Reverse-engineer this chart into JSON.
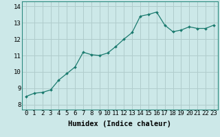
{
  "x": [
    0,
    1,
    2,
    3,
    4,
    5,
    6,
    7,
    8,
    9,
    10,
    11,
    12,
    13,
    14,
    15,
    16,
    17,
    18,
    19,
    20,
    21,
    22,
    23
  ],
  "y": [
    8.5,
    8.7,
    8.75,
    8.9,
    9.5,
    9.9,
    10.3,
    11.2,
    11.05,
    11.0,
    11.15,
    11.55,
    12.0,
    12.4,
    13.4,
    13.5,
    13.65,
    12.85,
    12.45,
    12.55,
    12.75,
    12.65,
    12.65,
    12.85
  ],
  "line_color": "#1a7a6e",
  "marker": "D",
  "marker_size": 2.0,
  "bg_color": "#cce8e8",
  "grid_color": "#b0cccc",
  "xlabel": "Humidex (Indice chaleur)",
  "xlim": [
    -0.5,
    23.5
  ],
  "ylim": [
    7.7,
    14.3
  ],
  "yticks": [
    8,
    9,
    10,
    11,
    12,
    13,
    14
  ],
  "xticks": [
    0,
    1,
    2,
    3,
    4,
    5,
    6,
    7,
    8,
    9,
    10,
    11,
    12,
    13,
    14,
    15,
    16,
    17,
    18,
    19,
    20,
    21,
    22,
    23
  ],
  "tick_fontsize": 6.5,
  "xlabel_fontsize": 7.5,
  "border_color": "#2a8a7e"
}
